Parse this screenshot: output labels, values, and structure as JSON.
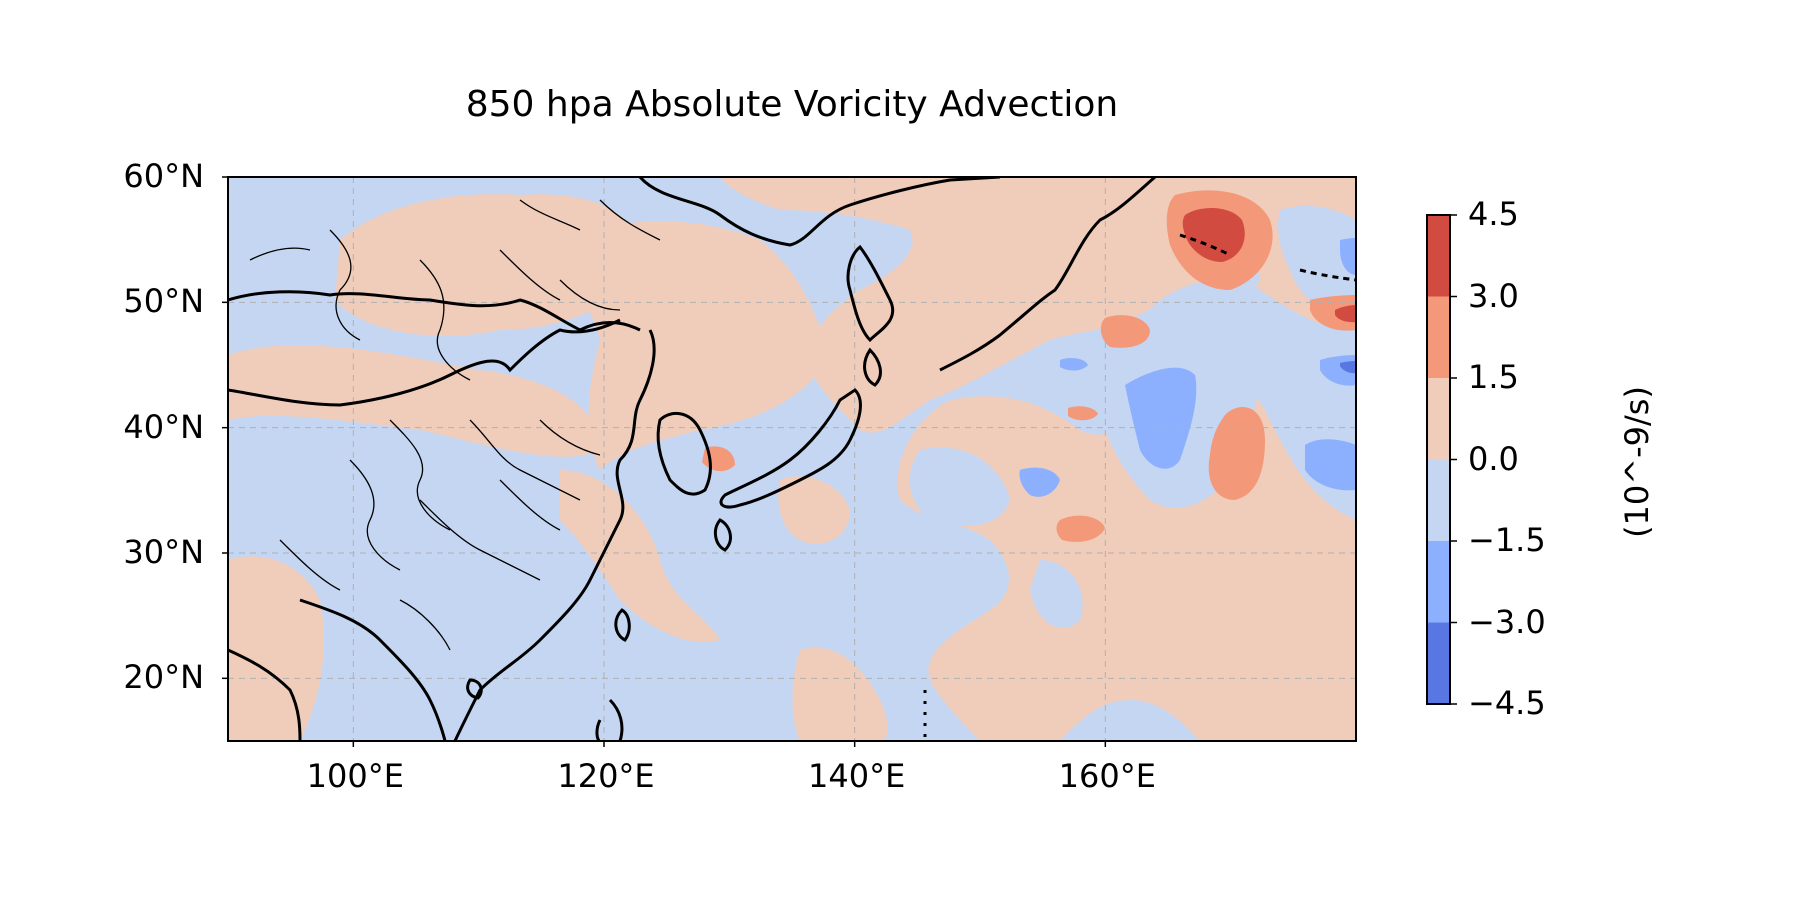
{
  "title": "850 hpa Absolute Voricity Advection",
  "map": {
    "extent": {
      "lon": [
        90,
        180
      ],
      "lat": [
        15,
        60
      ]
    },
    "lat_ticks": [
      {
        "value": 60,
        "label": "60°N"
      },
      {
        "value": 50,
        "label": "50°N"
      },
      {
        "value": 40,
        "label": "40°N"
      },
      {
        "value": 30,
        "label": "30°N"
      },
      {
        "value": 20,
        "label": "20°N"
      }
    ],
    "lon_ticks": [
      {
        "value": 100,
        "label": "100°E"
      },
      {
        "value": 120,
        "label": "120°E"
      },
      {
        "value": 140,
        "label": "140°E"
      },
      {
        "value": 160,
        "label": "160°E"
      }
    ],
    "gridlines": true,
    "coastlines": true,
    "borders": true
  },
  "colorbar": {
    "label": "(10^-9/s)",
    "placement": "right",
    "levels": [
      {
        "value": 4.5,
        "label": "4.5"
      },
      {
        "value": 3.0,
        "label": "3.0"
      },
      {
        "value": 1.5,
        "label": "1.5"
      },
      {
        "value": 0.0,
        "label": "0.0"
      },
      {
        "value": -1.5,
        "label": "−1.5"
      },
      {
        "value": -3.0,
        "label": "−3.0"
      },
      {
        "value": -4.5,
        "label": "−4.5"
      }
    ],
    "bins": [
      {
        "range": [
          3.0,
          4.5
        ],
        "color": "#d24b40"
      },
      {
        "range": [
          1.5,
          3.0
        ],
        "color": "#f4987a"
      },
      {
        "range": [
          0.0,
          1.5
        ],
        "color": "#f0cdbb"
      },
      {
        "range": [
          -1.5,
          0.0
        ],
        "color": "#c5d6f2"
      },
      {
        "range": [
          -3.0,
          -1.5
        ],
        "color": "#8db0fe"
      },
      {
        "range": [
          -4.5,
          -3.0
        ],
        "color": "#5977e3"
      }
    ]
  },
  "colors": {
    "background_field": "#c5d6f2",
    "positive_weak": "#f0cdbb",
    "positive_mid": "#f4987a",
    "positive_strong": "#d24b40",
    "negative_mid": "#8db0fe",
    "negative_strong": "#5977e3",
    "coastline": "#000000",
    "gridline": "#b0b0b0"
  }
}
